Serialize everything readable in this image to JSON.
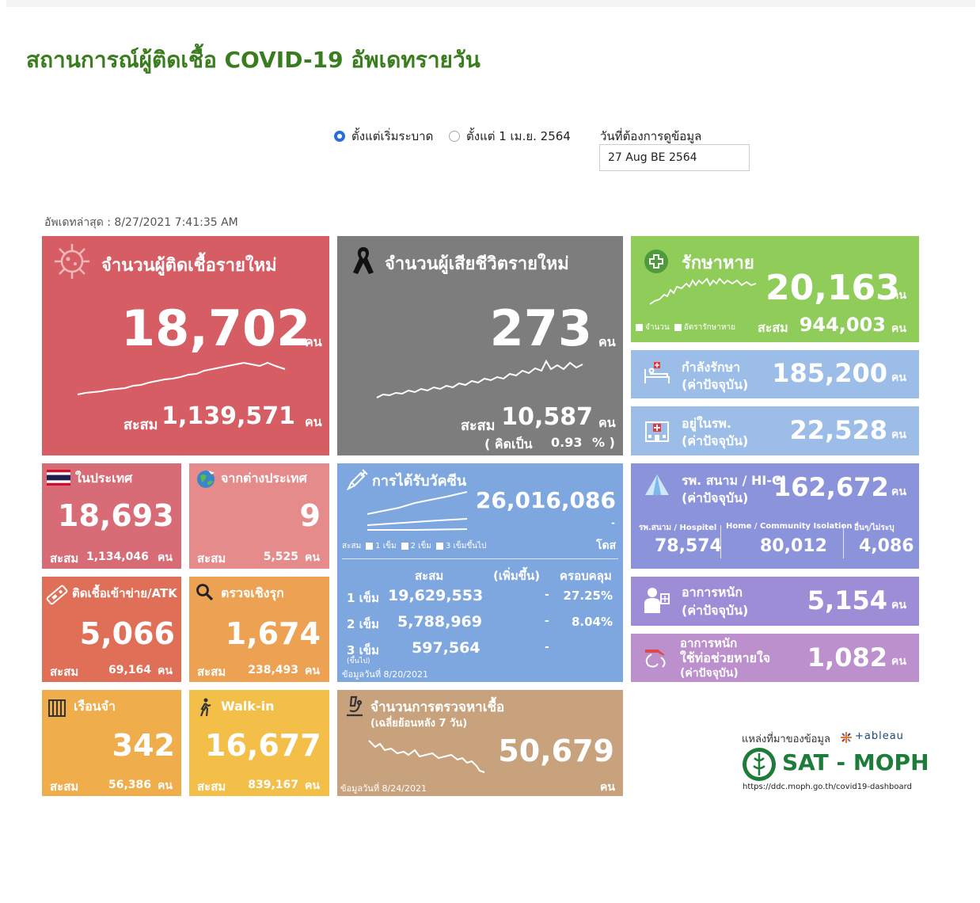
{
  "header": {
    "title": "สถานการณ์ผู้ติดเชื้อ COVID-19 อัพเดทรายวัน"
  },
  "filters": {
    "option_all": "ตั้งแต่เริ่มระบาด",
    "option_april": "ตั้งแต่ 1 เม.ย. 2564",
    "selected": "ตั้งแต่เริ่มระบาด",
    "date_label": "วันที่ต้องการดูข้อมูล",
    "date_value": "27 Aug BE 2564"
  },
  "updated": "อัพเดทล่าสุด : 8/27/2021 7:41:35 AM",
  "units": {
    "person": "คน",
    "dose": "โดส"
  },
  "new_cases": {
    "title": "จำนวนผู้ติดเชื้อรายใหม่",
    "value": "18,702",
    "cum_label": "สะสม",
    "cum_value": "1,139,571"
  },
  "new_deaths": {
    "title": "จำนวนผู้เสียชีวิตรายใหม่",
    "value": "273",
    "cum_label": "สะสม",
    "cum_value": "10,587",
    "pct_open": "( คิดเป็น",
    "pct_value": "0.93",
    "pct_close": "% )"
  },
  "recovered": {
    "title": "รักษาหาย",
    "value": "20,163",
    "legend_count": "จำนวน",
    "legend_rate": "อัตรารักษาหาย",
    "cum_label": "สะสม",
    "cum_value": "944,003"
  },
  "treating": {
    "title": "กำลังรักษา",
    "sub": "(ค่าปัจจุบัน)",
    "value": "185,200"
  },
  "in_hospital": {
    "title": "อยู่ในรพ.",
    "sub": "(ค่าปัจจุบัน)",
    "value": "22,528"
  },
  "domestic": {
    "title": "ในประเทศ",
    "value": "18,693",
    "cum_label": "สะสม",
    "cum_value": "1,134,046"
  },
  "abroad": {
    "title": "จากต่างประเทศ",
    "value": "9",
    "cum_label": "สะสม",
    "cum_value": "5,525"
  },
  "vaccine": {
    "title": "การได้รับวัคซีน",
    "total": "26,016,086",
    "dash": "-",
    "legend_label": "สะสม",
    "legend_1": "1 เข็ม",
    "legend_2": "2 เข็ม",
    "legend_3": "3 เข็มขึ้นไป",
    "col_cum": "สะสม",
    "col_inc": "(เพิ่มขึ้น)",
    "col_cov": "ครอบคลุม",
    "rows": [
      {
        "label": "1 เข็ม",
        "cum": "19,629,553",
        "inc": "-",
        "cov": "27.25%"
      },
      {
        "label": "2 เข็ม",
        "cum": "5,788,969",
        "inc": "-",
        "cov": "8.04%"
      },
      {
        "label": "3 เข็ม",
        "sublabel": "(ขึ้นไป)",
        "cum": "597,564",
        "inc": "-",
        "cov": ""
      }
    ],
    "note": "ข้อมูลวันที่ 8/20/2021"
  },
  "field_hospital": {
    "title": "รพ. สนาม / HI-CI",
    "sub": "(ค่าปัจจุบัน)",
    "value": "162,672",
    "col1_label": "รพ.สนาม / Hospitel",
    "col1_value": "78,574",
    "col2_label": "Home / Community Isolation",
    "col2_value": "80,012",
    "col3_label": "อื่นๆ/ไม่ระบุ",
    "col3_value": "4,086"
  },
  "atk": {
    "title": "ติดเชื้อเข้าข่าย/ATK",
    "value": "5,066",
    "cum_label": "สะสม",
    "cum_value": "69,164"
  },
  "proactive": {
    "title": "ตรวจเชิงรุก",
    "value": "1,674",
    "cum_label": "สะสม",
    "cum_value": "238,493"
  },
  "severe": {
    "title": "อาการหนัก",
    "sub": "(ค่าปัจจุบัน)",
    "value": "5,154"
  },
  "ventilator": {
    "title": "อาการหนัก",
    "title2": "ใช้ท่อช่วยหายใจ",
    "sub": "(ค่าปัจจุบัน)",
    "value": "1,082"
  },
  "prison": {
    "title": "เรือนจำ",
    "value": "342",
    "cum_label": "สะสม",
    "cum_value": "56,386"
  },
  "walkin": {
    "title": "Walk-in",
    "value": "16,677",
    "cum_label": "สะสม",
    "cum_value": "839,167"
  },
  "testing": {
    "title": "จำนวนการตรวจหาเชื้อ",
    "sub": "(เฉลี่ยย้อนหลัง 7 วัน)",
    "value": "50,679",
    "note": "ข้อมูลวันที่ 8/24/2021"
  },
  "source": {
    "label": "แหล่งที่มาของข้อมูล",
    "tool": "+ableau",
    "org": "SAT - MOPH",
    "url": "https://ddc.moph.go.th/covid19-dashboard"
  },
  "colors": {
    "title_green": "#3a7d1e",
    "new_cases": "#d65d64",
    "deaths": "#7d7d7d",
    "recovered": "#8fcc5a",
    "treating": "#9bbde8",
    "vaccine": "#7ea7e0",
    "testing": "#c8a27c",
    "severe": "#9d8dd7",
    "ventilator": "#bb90cc"
  },
  "icons": [
    "virus-icon",
    "black-ribbon-icon",
    "medical-cross-icon",
    "hospital-bed-icon",
    "hospital-building-icon",
    "thai-flag-icon",
    "globe-plane-icon",
    "syringe-icon",
    "tent-icon",
    "atk-test-icon",
    "search-icon",
    "doctor-patient-icon",
    "ventilator-icon",
    "prison-bars-icon",
    "walking-person-icon",
    "microscope-icon",
    "moph-seal-icon"
  ]
}
